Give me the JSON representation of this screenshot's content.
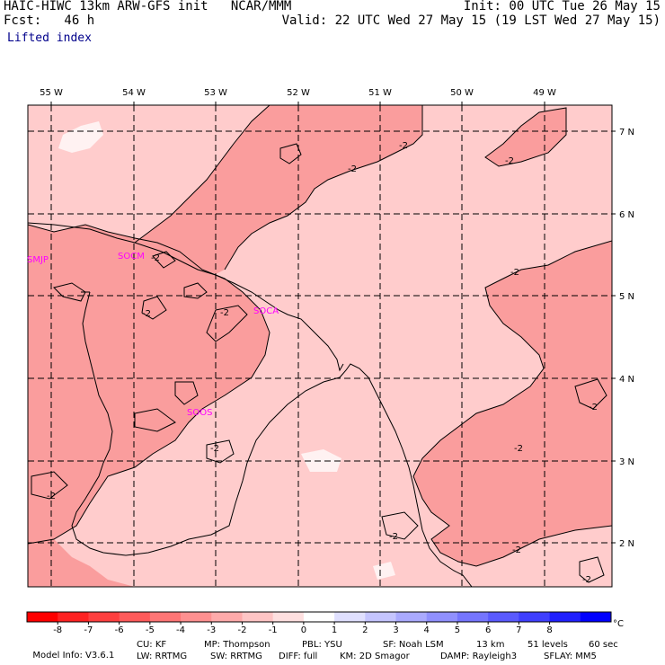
{
  "header": {
    "left_line1": "HAIC-HIWC 13km ARW-GFS init   NCAR/MMM",
    "left_line2": "Fcst:   46 h",
    "right_line1": "Init: 00 UTC Tue 26 May 15",
    "right_line2": "Valid: 22 UTC Wed 27 May 15 (19 LST Wed 27 May 15)",
    "field": "Lifted index"
  },
  "map": {
    "lon_labels": [
      "55 W",
      "54 W",
      "53 W",
      "52 W",
      "51 W",
      "50 W",
      "49 W"
    ],
    "lat_labels": [
      "7 N",
      "6 N",
      "5 N",
      "4 N",
      "3 N",
      "2 N"
    ],
    "stations": [
      "SMJP",
      "SOCM",
      "SOCA",
      "SOOS"
    ],
    "contour_label": "-2",
    "colors": {
      "frame": "#000000",
      "level_m1": "#ffcccc",
      "level_m2": "#ff9999",
      "level_m3": "#fa9d9d",
      "level_0": "#fff2f2",
      "station": "#ff00ff"
    }
  },
  "colorbar": {
    "ticks": [
      "-8",
      "-7",
      "-6",
      "-5",
      "-4",
      "-3",
      "-2",
      "-1",
      "0",
      "1",
      "2",
      "3",
      "4",
      "5",
      "6",
      "7",
      "8"
    ],
    "unit": "°C",
    "colors": [
      "#ff0000",
      "#ff2222",
      "#ff3f3f",
      "#ff5a5a",
      "#ff7575",
      "#ff9090",
      "#ffaaaa",
      "#ffc5c5",
      "#ffe0e0",
      "#ffffff",
      "#e0e0ff",
      "#c5c5ff",
      "#aaaaff",
      "#9090ff",
      "#7575ff",
      "#5a5aff",
      "#3f3fff",
      "#2020ff",
      "#0000ff"
    ]
  },
  "model_info": {
    "line1": {
      "model": "Model Info: V3.6.1",
      "cu": "CU: KF",
      "mp": "MP: Thompson",
      "pbl": "PBL: YSU",
      "sf": "SF: Noah LSM",
      "res": "13 km",
      "levels": "51 levels",
      "dt": "60 sec"
    },
    "line2": {
      "lw": "LW: RRTMG",
      "sw": "SW: RRTMG",
      "diff": "DIFF: full",
      "km": "KM: 2D Smagor",
      "damp": "DAMP: Rayleigh3",
      "sflay": "SFLAY: MM5"
    }
  }
}
